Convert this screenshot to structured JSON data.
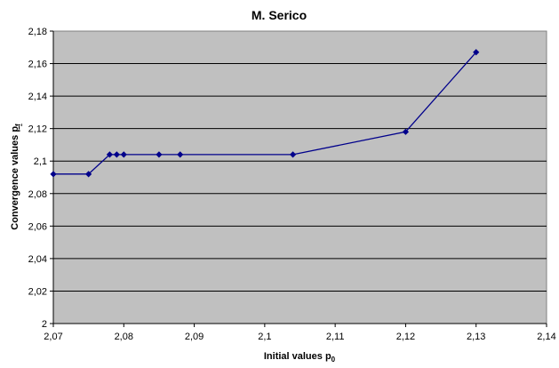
{
  "chart_data": {
    "type": "line",
    "title": "M. Serico",
    "xlabel": {
      "main": "Initial values p",
      "sub": "0"
    },
    "ylabel": {
      "main": "Convergence values ",
      "sym": "p",
      "sub": "f"
    },
    "xlim": [
      2.07,
      2.14
    ],
    "ylim": [
      2.0,
      2.18
    ],
    "x_ticks": [
      "2,07",
      "2,08",
      "2,09",
      "2,1",
      "2,11",
      "2,12",
      "2,13",
      "2,14"
    ],
    "y_ticks": [
      "2",
      "2,02",
      "2,04",
      "2,06",
      "2,08",
      "2,1",
      "2,12",
      "2,14",
      "2,16",
      "2,18"
    ],
    "grid": "horizontal",
    "series": [
      {
        "color": "#00008b",
        "marker": "diamond",
        "points": [
          [
            2.07,
            2.092
          ],
          [
            2.075,
            2.092
          ],
          [
            2.078,
            2.104
          ],
          [
            2.079,
            2.104
          ],
          [
            2.08,
            2.104
          ],
          [
            2.085,
            2.104
          ],
          [
            2.088,
            2.104
          ],
          [
            2.104,
            2.104
          ],
          [
            2.12,
            2.118
          ],
          [
            2.13,
            2.167
          ]
        ]
      }
    ],
    "plot_background": "#c0c0c0"
  }
}
